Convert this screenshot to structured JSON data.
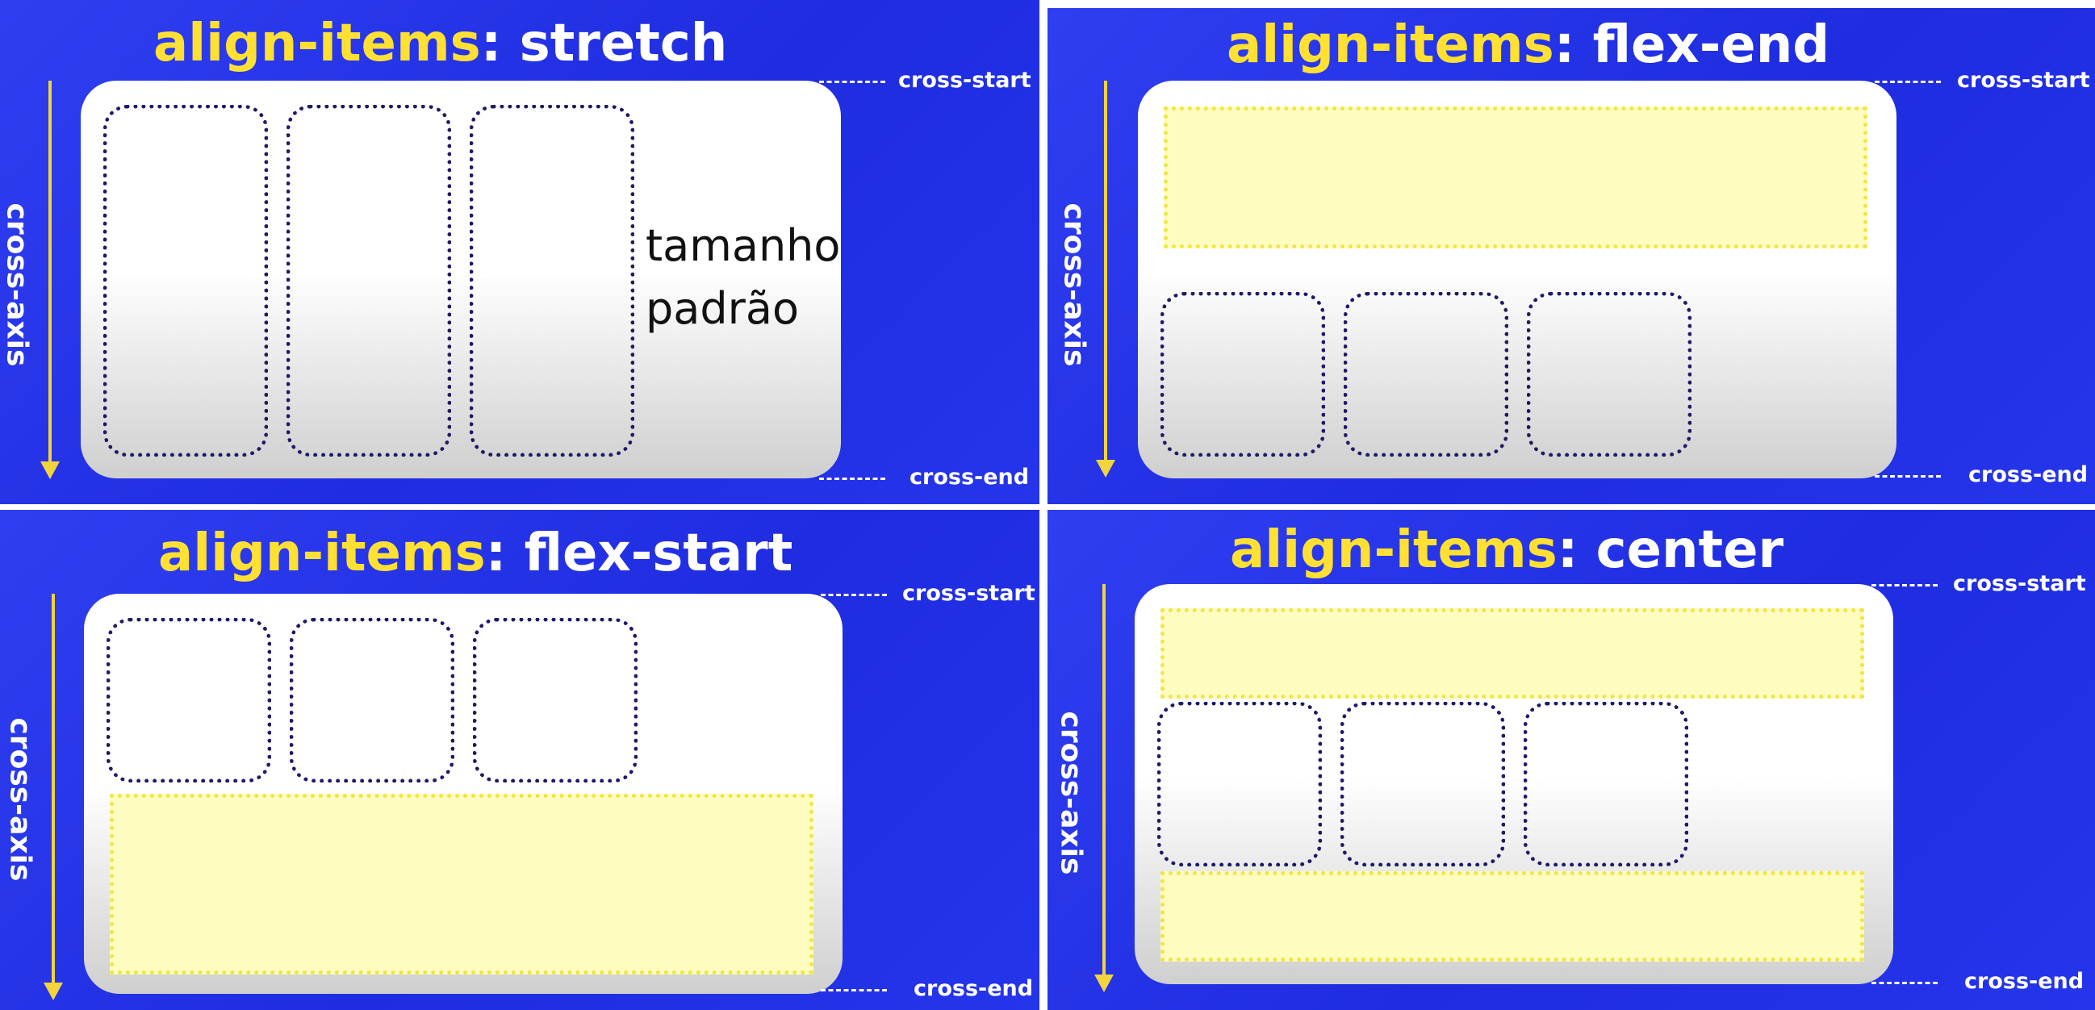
{
  "colors": {
    "panel_blue": "#2535ea",
    "keyword_yellow": "#ffe033",
    "item_border": "#1e1b66",
    "ghost_fill": "#fffcbf",
    "arrow_yellow": "#f2d43d"
  },
  "panels": [
    {
      "title_keyword": "align-items",
      "title_sep": ":",
      "title_value": "stretch",
      "axis_label": "cross-axis",
      "cross_start": "cross-start",
      "cross_end": "cross-end",
      "note_line1": "tamanho",
      "note_line2": "padrão"
    },
    {
      "title_keyword": "align-items",
      "title_sep": ":",
      "title_value": "flex-end",
      "axis_label": "cross-axis",
      "cross_start": "cross-start",
      "cross_end": "cross-end"
    },
    {
      "title_keyword": "align-items",
      "title_sep": ":",
      "title_value": "flex-start",
      "axis_label": "cross-axis",
      "cross_start": "cross-start",
      "cross_end": "cross-end"
    },
    {
      "title_keyword": "align-items",
      "title_sep": ":",
      "title_value": "center",
      "axis_label": "cross-axis",
      "cross_start": "cross-start",
      "cross_end": "cross-end"
    }
  ]
}
